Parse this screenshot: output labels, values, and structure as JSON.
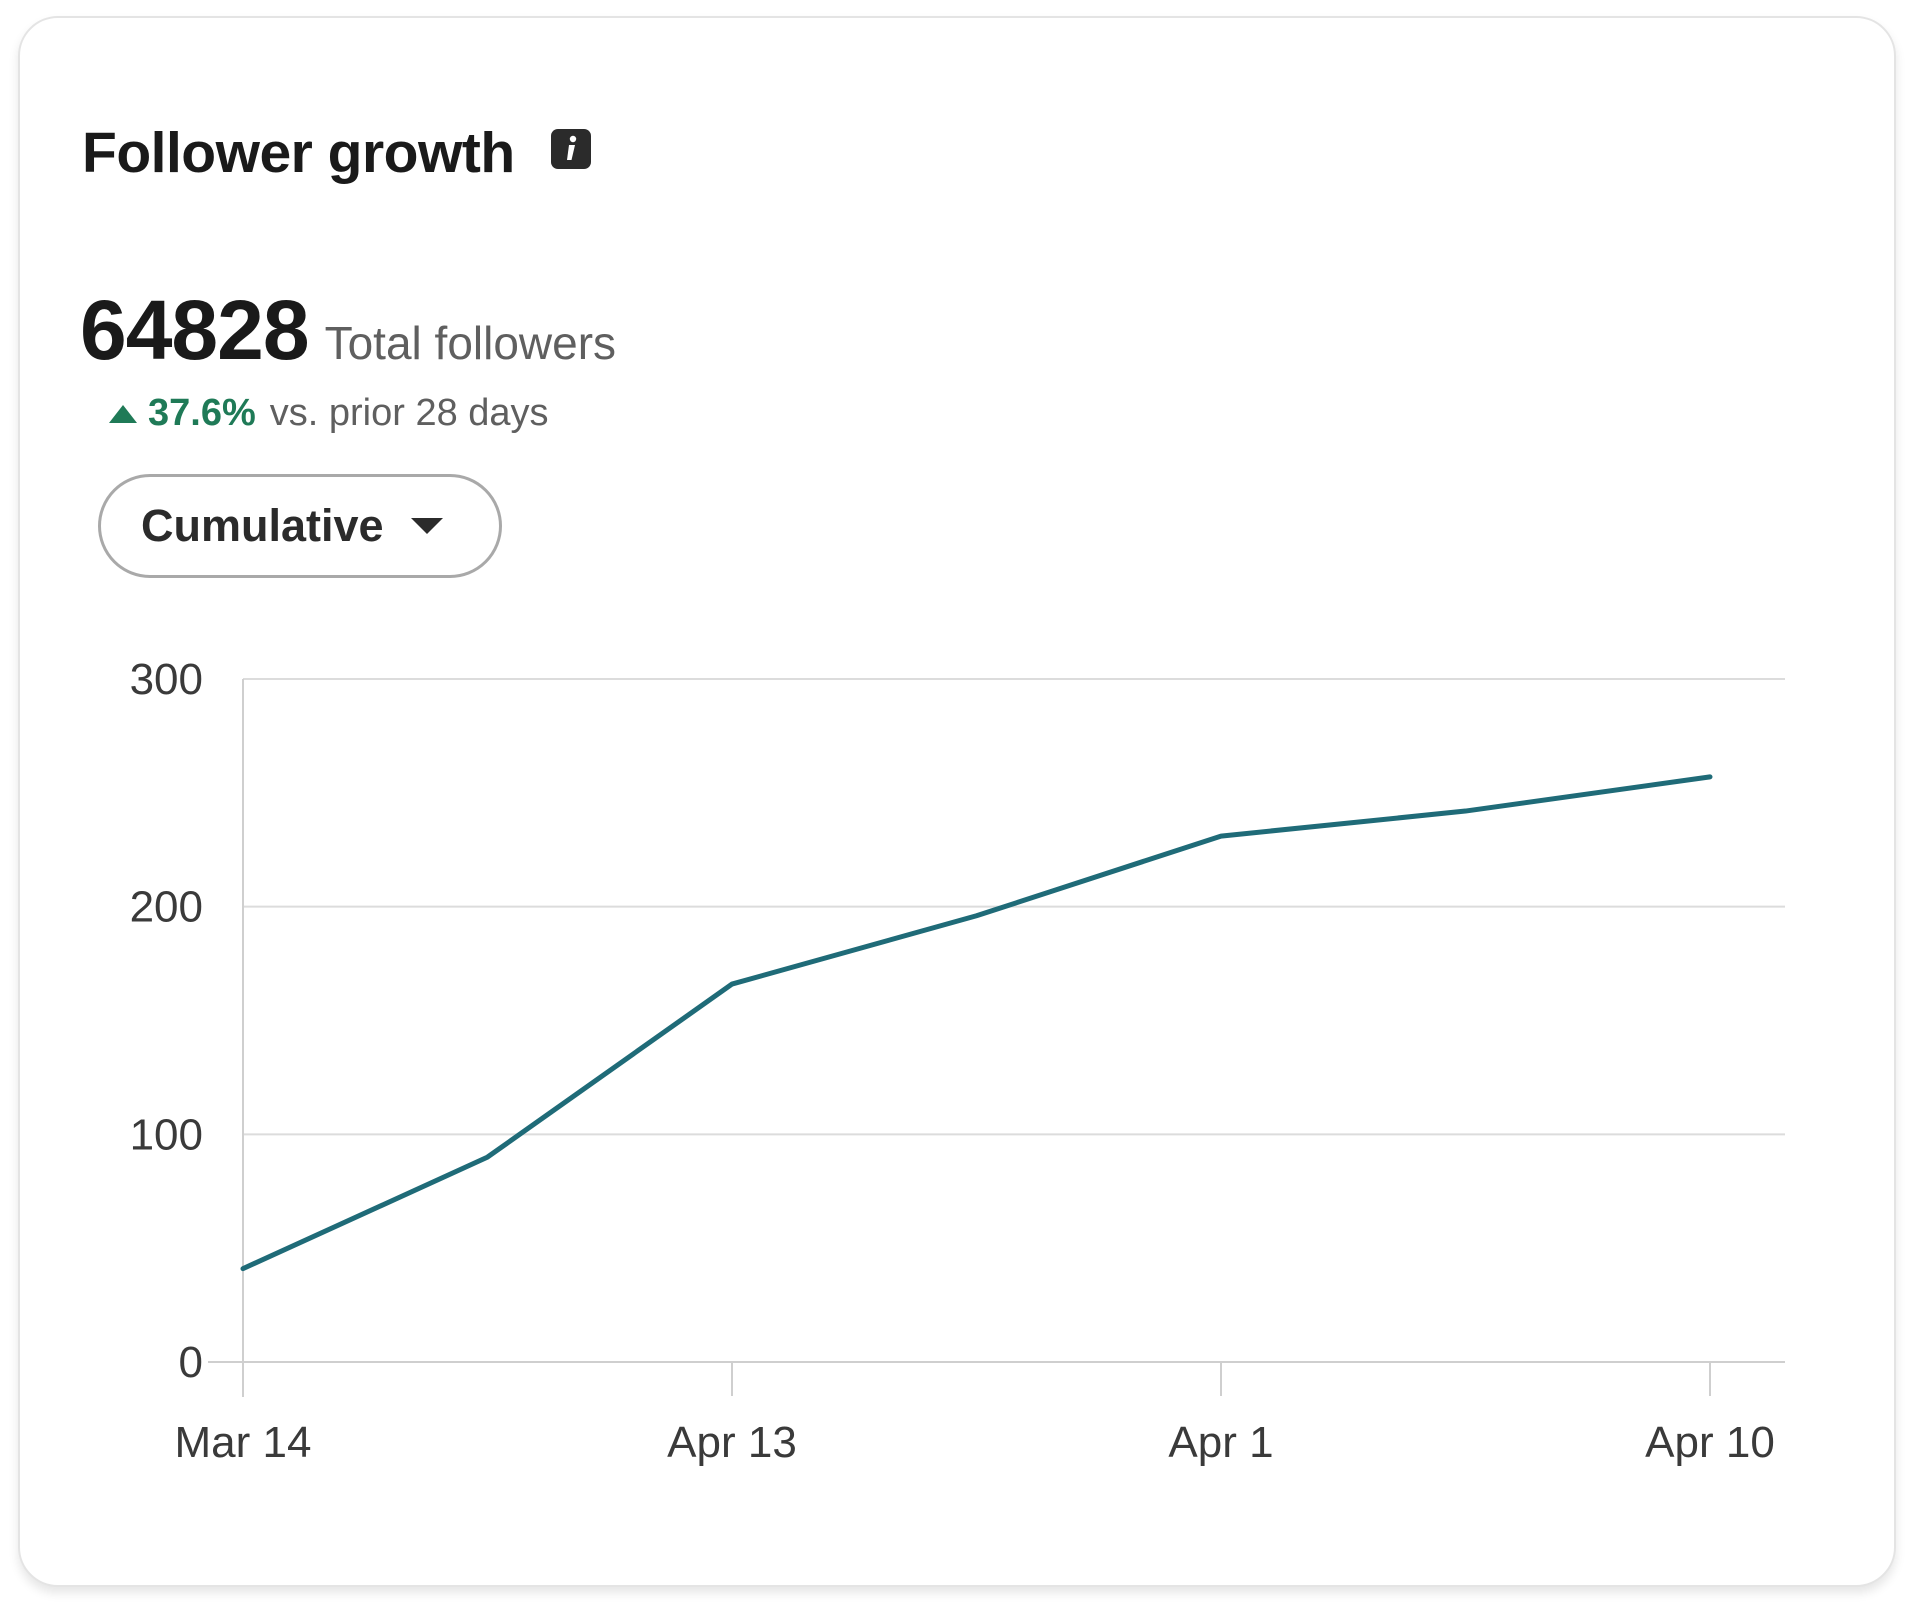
{
  "card": {
    "title": "Follower growth",
    "info_icon": "info-icon",
    "metric": {
      "value": "64828",
      "label": "Total followers"
    },
    "change": {
      "arrow_icon": "triangle-up-icon",
      "value": "37.6%",
      "text": "vs. prior 28 days",
      "color": "#1f7a57"
    },
    "view_select": {
      "selected": "Cumulative",
      "icon": "caret-down-icon"
    }
  },
  "chart_data": {
    "type": "line",
    "title": "",
    "xlabel": "",
    "ylabel": "",
    "ylim": [
      0,
      300
    ],
    "yticks": [
      "0",
      "100",
      "200",
      "300"
    ],
    "ytick_values": [
      0,
      100,
      200,
      300
    ],
    "xticks": [
      "Mar 14",
      "Apr 13",
      "Apr 1",
      "Apr 10"
    ],
    "xtick_positions": [
      0,
      2,
      4,
      6
    ],
    "x": [
      0,
      1,
      2,
      3,
      4,
      5,
      6
    ],
    "series": [
      {
        "values": [
          41,
          90,
          166,
          196,
          231,
          242,
          257
        ],
        "color": "#1f6b78"
      }
    ],
    "grid": true,
    "legend": "none"
  }
}
